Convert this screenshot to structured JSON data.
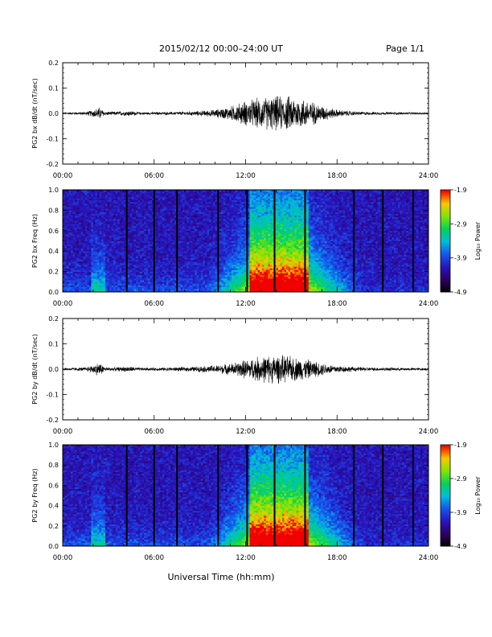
{
  "page": {
    "title": "2015/02/12  00:00–24:00 UT",
    "page_label": "Page 1/1",
    "xlabel": "Universal Time (hh:mm)"
  },
  "chart_data": [
    {
      "type": "line",
      "ylabel": "PG2 bx dB/dt (nT/sec)",
      "ylim": [
        -0.2,
        0.2
      ],
      "yticks": [
        "0.2",
        "0.1",
        "0.0",
        "-0.1",
        "-0.2"
      ],
      "xticks": [
        "00:00",
        "06:00",
        "12:00",
        "18:00",
        "24:00"
      ],
      "xlim_hours": [
        0,
        24
      ],
      "envelope": {
        "hours": [
          0,
          1.5,
          2.0,
          2.4,
          2.8,
          3.5,
          4.4,
          5.0,
          6.0,
          7.0,
          8.0,
          9.0,
          10.0,
          11.0,
          12.0,
          13.0,
          14.0,
          15.0,
          16.0,
          17.0,
          18.0,
          19.0,
          20.0,
          22.0,
          24.0
        ],
        "amplitude": [
          0.003,
          0.005,
          0.012,
          0.02,
          0.006,
          0.006,
          0.009,
          0.004,
          0.004,
          0.005,
          0.006,
          0.008,
          0.012,
          0.022,
          0.04,
          0.05,
          0.055,
          0.055,
          0.045,
          0.025,
          0.012,
          0.007,
          0.005,
          0.004,
          0.003
        ]
      }
    },
    {
      "type": "heatmap",
      "ylabel": "PG2 bx Freq (Hz)",
      "ylim": [
        0.0,
        1.0
      ],
      "yticks": [
        "1.0",
        "0.8",
        "0.6",
        "0.4",
        "0.2",
        "0.0"
      ],
      "xticks": [
        "00:00",
        "06:00",
        "12:00",
        "18:00",
        "24:00"
      ],
      "colorbar": {
        "label": "Log₁₀ Power",
        "ticks": [
          "-1.9",
          "-2.9",
          "-3.9",
          "-4.9"
        ],
        "range": [
          -4.9,
          -1.9
        ]
      },
      "data_gap_hours": [
        4.2,
        6.0,
        7.5,
        10.2,
        12.1,
        13.9,
        15.9,
        19.1,
        21.0,
        23.0
      ]
    },
    {
      "type": "line",
      "ylabel": "PG2 by dB/dt (nT/sec)",
      "ylim": [
        -0.2,
        0.2
      ],
      "yticks": [
        "0.2",
        "0.1",
        "0.0",
        "-0.1",
        "-0.2"
      ],
      "xticks": [
        "00:00",
        "06:00",
        "12:00",
        "18:00",
        "24:00"
      ],
      "xlim_hours": [
        0,
        24
      ],
      "envelope": {
        "hours": [
          0,
          1.5,
          2.0,
          2.4,
          2.8,
          3.5,
          4.4,
          5.0,
          6.0,
          7.0,
          8.0,
          9.0,
          10.0,
          11.0,
          12.0,
          13.0,
          14.0,
          15.0,
          16.0,
          17.0,
          18.0,
          19.0,
          20.0,
          22.0,
          24.0
        ],
        "amplitude": [
          0.004,
          0.006,
          0.014,
          0.022,
          0.007,
          0.006,
          0.009,
          0.005,
          0.005,
          0.006,
          0.007,
          0.009,
          0.012,
          0.018,
          0.03,
          0.042,
          0.045,
          0.04,
          0.032,
          0.02,
          0.012,
          0.008,
          0.006,
          0.005,
          0.004
        ]
      }
    },
    {
      "type": "heatmap",
      "ylabel": "PG2 by Freq (Hz)",
      "ylim": [
        0.0,
        1.0
      ],
      "yticks": [
        "1.0",
        "0.8",
        "0.6",
        "0.4",
        "0.2",
        "0.0"
      ],
      "xticks": [
        "00:00",
        "06:00",
        "12:00",
        "18:00",
        "24:00"
      ],
      "colorbar": {
        "label": "Log₁₀ Power",
        "ticks": [
          "-1.9",
          "-2.9",
          "-3.9",
          "-4.9"
        ],
        "range": [
          -4.9,
          -1.9
        ]
      },
      "data_gap_hours": [
        4.2,
        6.0,
        7.5,
        10.2,
        12.1,
        13.9,
        15.9,
        19.1,
        21.0,
        23.0
      ]
    }
  ]
}
